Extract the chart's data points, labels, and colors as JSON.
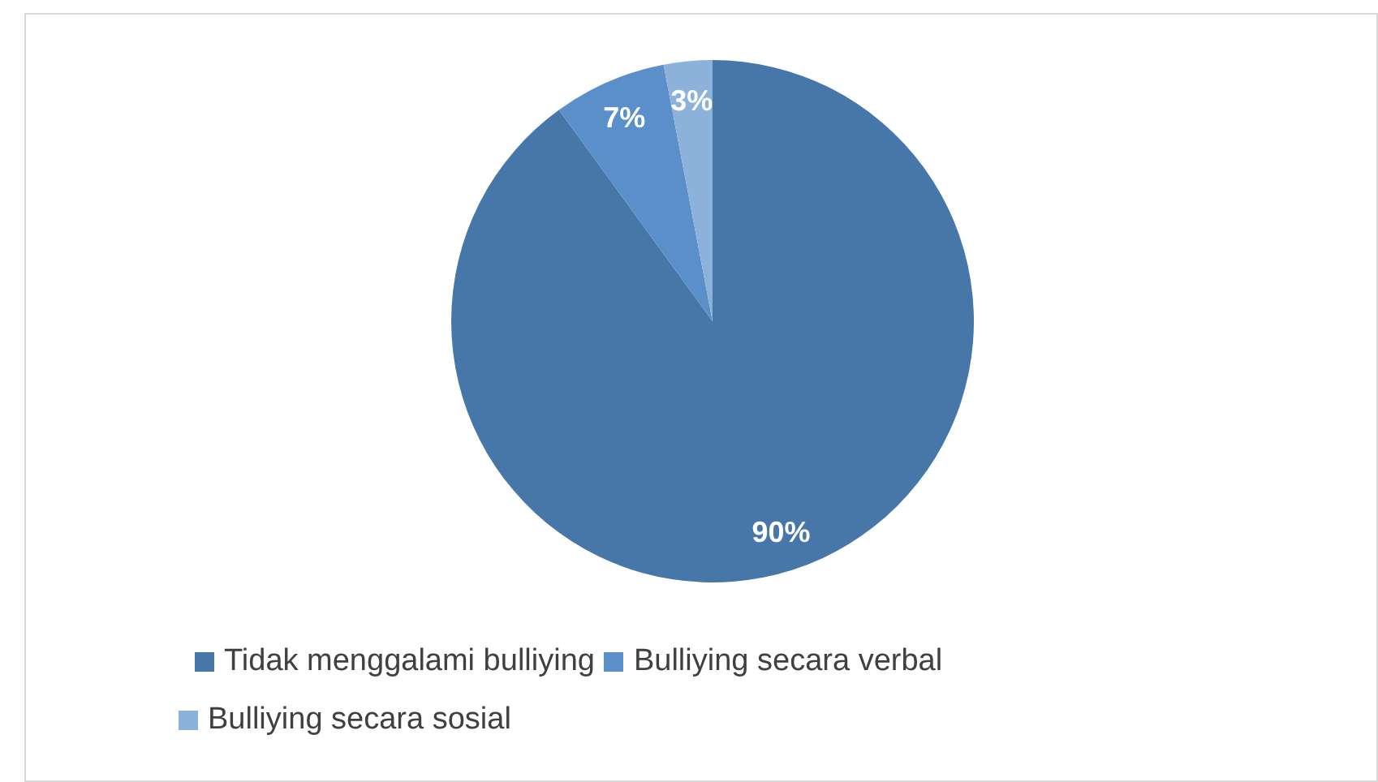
{
  "chart_data": {
    "type": "pie",
    "categories": [
      "Tidak menggalami bulliying",
      "Bulliying secara verbal",
      "Bulliying secara sosial"
    ],
    "values": [
      90,
      7,
      3
    ],
    "colors": [
      "#4677a8",
      "#5b8fc9",
      "#8cb2dc"
    ],
    "value_labels": [
      "90%",
      "7%",
      "3%"
    ],
    "legend": "bottom"
  }
}
